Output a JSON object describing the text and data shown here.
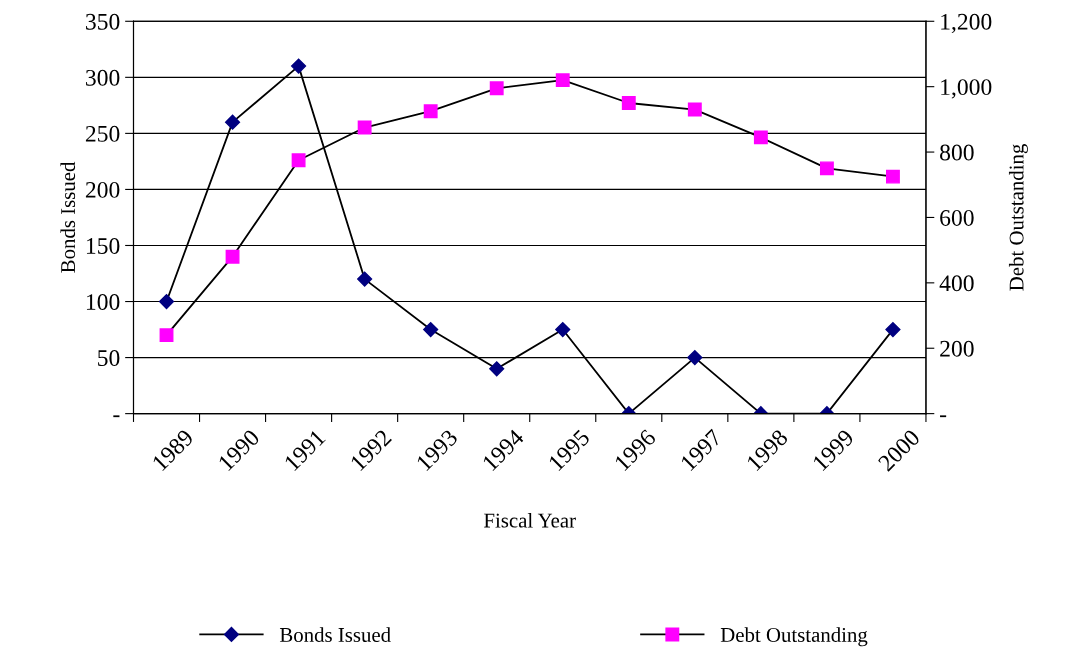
{
  "chart_data": {
    "type": "line",
    "xlabel": "Fiscal Year",
    "ylabel": "Bonds Issued",
    "y2label": "Debt Outstanding",
    "categories": [
      "1989",
      "1990",
      "1991",
      "1992",
      "1993",
      "1994",
      "1995",
      "1996",
      "1997",
      "1998",
      "1999",
      "2000"
    ],
    "series": [
      {
        "name": "Bonds Issued",
        "color": "#000080",
        "marker": "diamond",
        "values": [
          100,
          260,
          310,
          120,
          75,
          40,
          75,
          0,
          50,
          0,
          0,
          75
        ]
      },
      {
        "name": "Debt Outstanding",
        "color": "#ff00ff",
        "marker": "square",
        "axis": "y2",
        "values": [
          240,
          480,
          775,
          875,
          925,
          995,
          1020,
          950,
          930,
          845,
          750,
          725
        ]
      }
    ],
    "ylim": [
      0,
      350
    ],
    "yticks": [
      {
        "value": 0,
        "label": "-"
      },
      50,
      100,
      150,
      200,
      250,
      300,
      350
    ],
    "y2lim": [
      0,
      1200
    ],
    "y2ticks": [
      {
        "value": 0,
        "label": "-"
      },
      200,
      400,
      600,
      800,
      {
        "value": 1000,
        "label": "1,000"
      },
      {
        "value": 1200,
        "label": "1,200"
      }
    ],
    "grid": "y",
    "legend": "bottom",
    "line_style": "solid"
  }
}
